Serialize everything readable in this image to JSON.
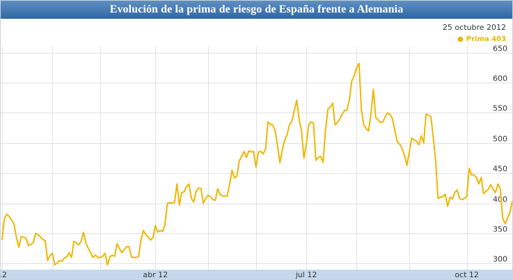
{
  "chart_data": {
    "type": "line",
    "title": "Evolución de la prima de riesgo de España frente a Alemania",
    "date_label": "25 octubre 2012",
    "legend": {
      "marker": "●",
      "name": "Prima",
      "value": "403",
      "position": "top-right"
    },
    "xlabel": "",
    "ylabel": "",
    "grid": true,
    "ylim": [
      290,
      660
    ],
    "y_ticks": [
      "300",
      "350",
      "400",
      "450",
      "500",
      "550",
      "600",
      "650"
    ],
    "x_ticks": [
      {
        "label": ".2",
        "t": 0
      },
      {
        "label": "abr 12",
        "t": 64
      },
      {
        "label": "jul 12",
        "t": 127
      },
      {
        "label": "oct 12",
        "t": 194
      }
    ],
    "x_gridlines": [
      0,
      21,
      41,
      64,
      86,
      106,
      127,
      148,
      170,
      194,
      215
    ],
    "xlim": [
      0,
      213
    ],
    "colors": {
      "line": "#eeb600",
      "title_bg": "#3d72ad",
      "grid": "#e0e0e0"
    },
    "series": [
      {
        "name": "Prima",
        "points": [
          [
            0,
            340
          ],
          [
            1,
            375
          ],
          [
            2,
            382
          ],
          [
            3,
            378
          ],
          [
            4,
            372
          ],
          [
            5,
            365
          ],
          [
            6,
            343
          ],
          [
            7,
            327
          ],
          [
            8,
            345
          ],
          [
            9,
            344
          ],
          [
            10,
            342
          ],
          [
            11,
            330
          ],
          [
            12,
            332
          ],
          [
            13,
            334
          ],
          [
            14,
            350
          ],
          [
            15,
            348
          ],
          [
            16,
            344
          ],
          [
            17,
            340
          ],
          [
            18,
            338
          ],
          [
            19,
            305
          ],
          [
            20,
            313
          ],
          [
            21,
            317
          ],
          [
            22,
            298
          ],
          [
            23,
            301
          ],
          [
            24,
            305
          ],
          [
            25,
            304
          ],
          [
            26,
            309
          ],
          [
            27,
            311
          ],
          [
            28,
            318
          ],
          [
            29,
            310
          ],
          [
            30,
            337
          ],
          [
            31,
            334
          ],
          [
            32,
            331
          ],
          [
            33,
            337
          ],
          [
            34,
            352
          ],
          [
            35,
            334
          ],
          [
            36,
            325
          ],
          [
            37,
            318
          ],
          [
            38,
            310
          ],
          [
            39,
            314
          ],
          [
            40,
            310
          ],
          [
            41,
            310
          ],
          [
            42,
            312
          ],
          [
            43,
            317
          ],
          [
            44,
            298
          ],
          [
            45,
            311
          ],
          [
            46,
            314
          ],
          [
            47,
            312
          ],
          [
            48,
            333
          ],
          [
            49,
            325
          ],
          [
            50,
            318
          ],
          [
            51,
            323
          ],
          [
            52,
            328
          ],
          [
            53,
            328
          ],
          [
            54,
            311
          ],
          [
            55,
            310
          ],
          [
            56,
            310
          ],
          [
            57,
            312
          ],
          [
            58,
            340
          ],
          [
            59,
            355
          ],
          [
            60,
            348
          ],
          [
            61,
            344
          ],
          [
            62,
            339
          ],
          [
            63,
            343
          ],
          [
            64,
            363
          ],
          [
            65,
            352
          ],
          [
            66,
            355
          ],
          [
            67,
            353
          ],
          [
            68,
            365
          ],
          [
            69,
            400
          ],
          [
            70,
            401
          ],
          [
            71,
            400
          ],
          [
            72,
            402
          ],
          [
            73,
            432
          ],
          [
            74,
            397
          ],
          [
            75,
            418
          ],
          [
            76,
            419
          ],
          [
            77,
            428
          ],
          [
            78,
            432
          ],
          [
            79,
            408
          ],
          [
            80,
            402
          ],
          [
            81,
            420
          ],
          [
            82,
            425
          ],
          [
            83,
            425
          ],
          [
            84,
            400
          ],
          [
            85,
            408
          ],
          [
            86,
            413
          ],
          [
            87,
            411
          ],
          [
            88,
            406
          ],
          [
            89,
            405
          ],
          [
            90,
            424
          ],
          [
            91,
            415
          ],
          [
            92,
            412
          ],
          [
            93,
            412
          ],
          [
            94,
            412
          ],
          [
            95,
            432
          ],
          [
            96,
            455
          ],
          [
            97,
            442
          ],
          [
            98,
            445
          ],
          [
            99,
            470
          ],
          [
            100,
            478
          ],
          [
            101,
            486
          ],
          [
            102,
            476
          ],
          [
            103,
            487
          ],
          [
            104,
            485
          ],
          [
            105,
            486
          ],
          [
            106,
            460
          ],
          [
            107,
            485
          ],
          [
            108,
            486
          ],
          [
            109,
            482
          ],
          [
            110,
            490
          ],
          [
            111,
            535
          ],
          [
            112,
            531
          ],
          [
            113,
            530
          ],
          [
            114,
            520
          ],
          [
            115,
            495
          ],
          [
            116,
            467
          ],
          [
            117,
            489
          ],
          [
            118,
            505
          ],
          [
            119,
            514
          ],
          [
            120,
            531
          ],
          [
            121,
            536
          ],
          [
            122,
            554
          ],
          [
            123,
            571
          ],
          [
            124,
            540
          ],
          [
            125,
            520
          ],
          [
            126,
            475
          ],
          [
            127,
            497
          ],
          [
            128,
            530
          ],
          [
            129,
            535
          ],
          [
            130,
            533
          ],
          [
            131,
            471
          ],
          [
            132,
            476
          ],
          [
            133,
            478
          ],
          [
            134,
            468
          ],
          [
            135,
            520
          ],
          [
            136,
            556
          ],
          [
            137,
            560
          ],
          [
            138,
            566
          ],
          [
            139,
            530
          ],
          [
            140,
            534
          ],
          [
            141,
            540
          ],
          [
            142,
            548
          ],
          [
            143,
            554
          ],
          [
            144,
            555
          ],
          [
            145,
            572
          ],
          [
            146,
            603
          ],
          [
            147,
            612
          ],
          [
            148,
            625
          ],
          [
            149,
            632
          ],
          [
            150,
            555
          ],
          [
            151,
            530
          ],
          [
            152,
            524
          ],
          [
            153,
            520
          ],
          [
            154,
            549
          ],
          [
            155,
            589
          ],
          [
            156,
            542
          ],
          [
            157,
            538
          ],
          [
            158,
            534
          ],
          [
            159,
            535
          ],
          [
            160,
            544
          ],
          [
            161,
            550
          ],
          [
            162,
            547
          ],
          [
            163,
            540
          ],
          [
            164,
            520
          ],
          [
            165,
            502
          ],
          [
            166,
            498
          ],
          [
            167,
            490
          ],
          [
            168,
            480
          ],
          [
            169,
            463
          ],
          [
            170,
            485
          ],
          [
            171,
            508
          ],
          [
            172,
            505
          ],
          [
            173,
            503
          ],
          [
            174,
            497
          ],
          [
            175,
            512
          ],
          [
            176,
            500
          ],
          [
            177,
            548
          ],
          [
            178,
            546
          ],
          [
            179,
            544
          ],
          [
            180,
            510
          ],
          [
            181,
            470
          ],
          [
            182,
            408
          ],
          [
            183,
            410
          ],
          [
            184,
            411
          ],
          [
            185,
            415
          ],
          [
            186,
            395
          ],
          [
            187,
            410
          ],
          [
            188,
            407
          ],
          [
            189,
            418
          ],
          [
            190,
            422
          ],
          [
            191,
            408
          ],
          [
            192,
            406
          ],
          [
            193,
            408
          ],
          [
            194,
            411
          ],
          [
            195,
            458
          ],
          [
            196,
            447
          ],
          [
            197,
            447
          ],
          [
            198,
            443
          ],
          [
            199,
            432
          ],
          [
            200,
            443
          ],
          [
            201,
            416
          ],
          [
            202,
            420
          ],
          [
            203,
            423
          ],
          [
            204,
            431
          ],
          [
            205,
            423
          ],
          [
            206,
            418
          ],
          [
            207,
            432
          ],
          [
            208,
            424
          ],
          [
            209,
            375
          ],
          [
            210,
            366
          ],
          [
            211,
            375
          ],
          [
            212,
            385
          ],
          [
            213,
            403
          ]
        ]
      }
    ]
  }
}
